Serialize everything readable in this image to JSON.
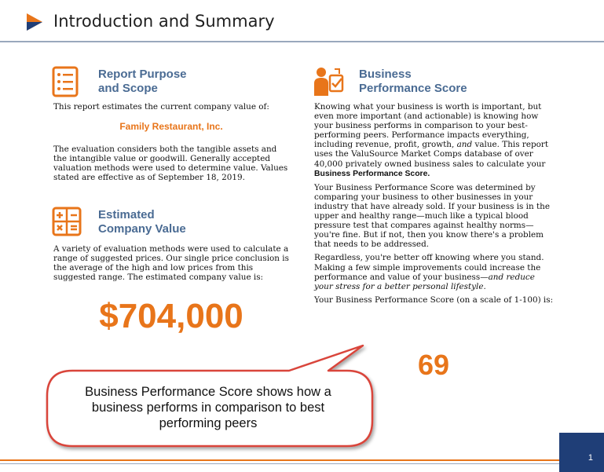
{
  "header": {
    "title": "Introduction and Summary"
  },
  "report_purpose": {
    "title_line1": "Report Purpose",
    "title_line2": "and Scope",
    "intro": "This report estimates the current company value of:",
    "company_name": "Family Restaurant, Inc.",
    "body": "The evaluation considers both the tangible assets and the intangible value or goodwill. Generally accepted valuation methods were used to determine value. Values stated are effective as of September 18, 2019."
  },
  "estimated_value": {
    "title_line1": "Estimated",
    "title_line2": "Company Value",
    "body": "A variety of evaluation methods were used to calculate a range of suggested prices. Our single price conclusion is the average of the high and low prices from this suggested range. The estimated company value is:",
    "value": "$704,000"
  },
  "business_performance": {
    "title_line1": "Business",
    "title_line2": "Performance Score",
    "p1_a": "Knowing what your business is worth is important, but even more important (and actionable) is knowing how your business performs in comparison to your best-performing peers. Performance impacts everything, including revenue, profit, growth,",
    "p1_and": "and",
    "p1_b": "value. This report uses the ValuSource Market Comps database of over 40,000 privately owned business sales to calculate your",
    "p1_bold": "Business Performance Score.",
    "p2": "Your Business Performance Score was determined by comparing your business to other businesses in your industry that have already sold. If your business is in the upper and healthy range—much like a typical blood pressure test that compares against healthy norms—you're fine. But if not, then you know there's a problem that needs to be addressed.",
    "p3_a": "Regardless, you're better off knowing where you stand. Making a few simple improvements could increase the performance and value of your business—",
    "p3_italic": "and reduce your stress for a better personal lifestyle.",
    "p4": "Your Business Performance Score (on a scale of 1-100) is:",
    "score": "69"
  },
  "callout": {
    "text": "Business Performance Score shows how a business performs in comparison to best performing peers"
  },
  "footer": {
    "page_number": "1"
  },
  "colors": {
    "accent": "#e8751a",
    "heading": "#4a6b93",
    "footer_box": "#1f3e77",
    "callout_border": "#d9453b"
  },
  "icons": [
    "logo-icon",
    "report-document-icon",
    "calculator-icon",
    "business-performance-icon"
  ]
}
